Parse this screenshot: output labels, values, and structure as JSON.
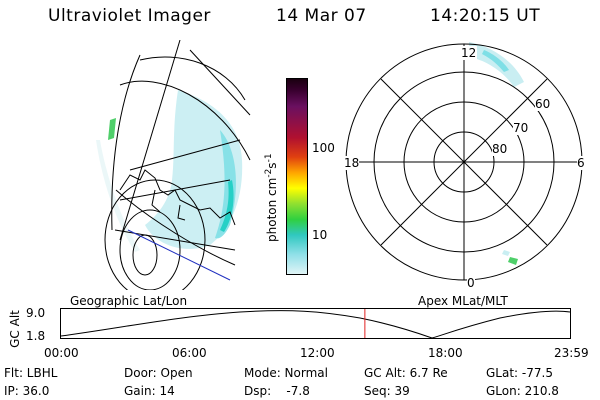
{
  "header": {
    "instrument": "Ultraviolet Imager",
    "date": "14 Mar 07",
    "time": "14:20:15 UT"
  },
  "colorbar": {
    "unit_label": "photon cm",
    "unit_exp1": "-2",
    "unit_s": "s",
    "unit_exp2": "-1",
    "ticks": [
      "100",
      "10"
    ]
  },
  "polar": {
    "mlt_labels": {
      "top": "12",
      "left": "18",
      "right": "6",
      "bottom": "0"
    },
    "lat_labels": [
      "60",
      "70",
      "80"
    ],
    "dial_label": "Apex MLat/MLT"
  },
  "geo": {
    "label": "Geographic Lat/Lon"
  },
  "timeline": {
    "axis_title": "GC Alt",
    "y_ticks": [
      "9.0",
      "1.8"
    ],
    "x_ticks": [
      "00:00",
      "06:00",
      "12:00",
      "18:00",
      "23:59"
    ],
    "current_fraction": 0.597,
    "marker_color": "#e02020"
  },
  "info": {
    "flt": "Flt: LBHL",
    "door": "Door: Open",
    "mode": "Mode: Normal",
    "gc_alt": "GC Alt: 6.7 Re",
    "glat": "GLat: -77.5",
    "ip": "IP: 36.0",
    "gain": "Gain: 14",
    "dsp": "Dsp:    -7.8",
    "seq": "Seq: 39",
    "glon": "GLon: 210.8"
  },
  "colors": {
    "aurora_light": "#c9eef2",
    "aurora_mid": "#7fdfe6",
    "aurora_bright": "#26d0c6",
    "aurora_green": "#4fcf6a"
  }
}
